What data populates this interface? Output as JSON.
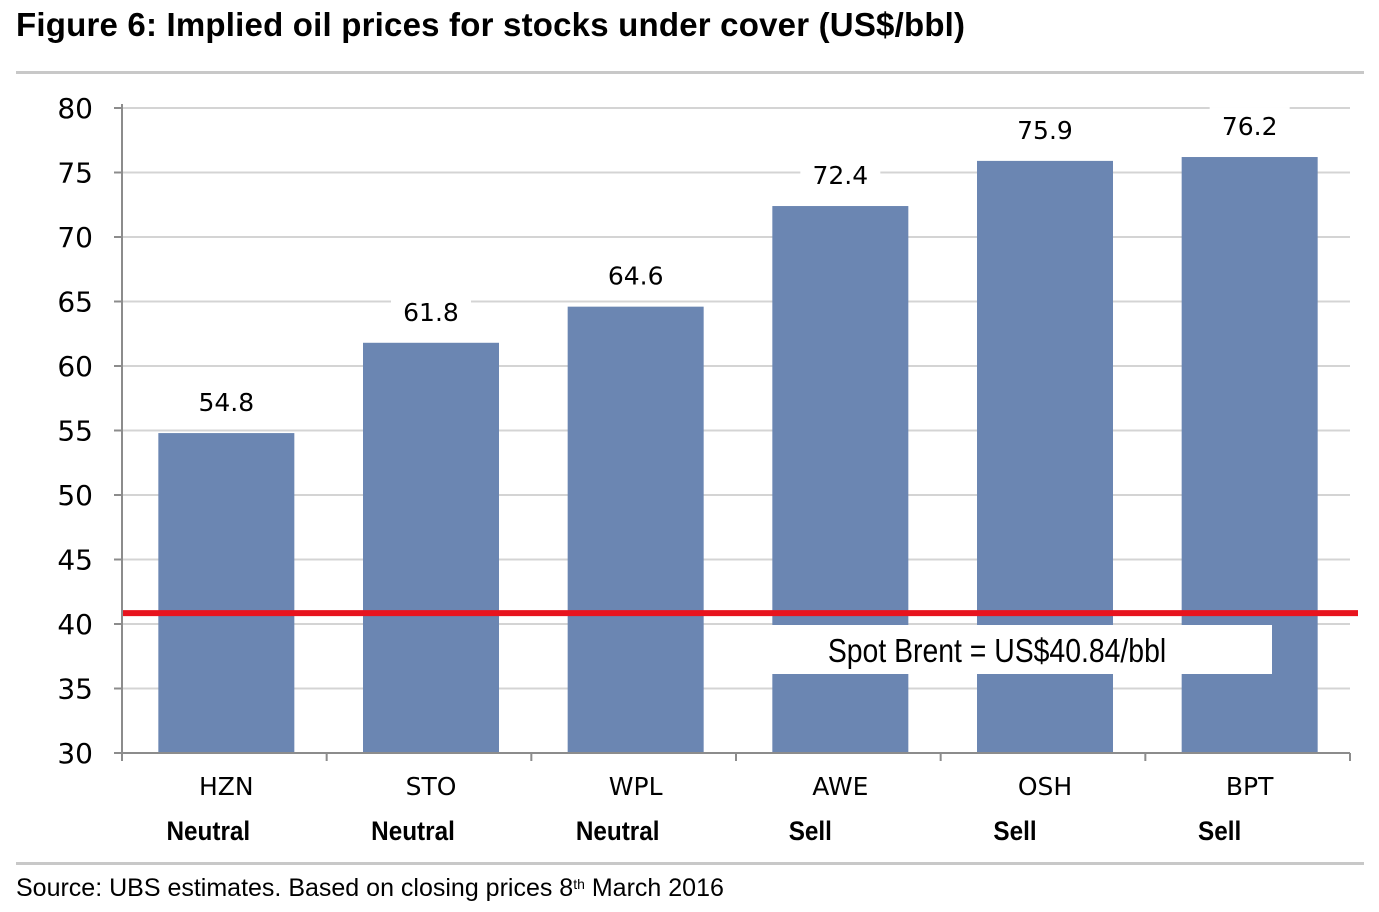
{
  "title": "Figure 6: Implied oil prices for stocks under cover (US$/bbl)",
  "source": {
    "prefix": "Source:  UBS estimates. Based on closing prices 8",
    "sup": "th",
    "suffix": " March 2016"
  },
  "colors": {
    "bar": "#6b86b2",
    "spot_line": "#e8141e",
    "grid": "#d4d4d4",
    "axis": "#8c8c8c"
  },
  "chart_data": {
    "type": "bar",
    "title": "Implied oil prices for stocks under cover (US$/bbl)",
    "categories": [
      "HZN",
      "STO",
      "WPL",
      "AWE",
      "OSH",
      "BPT"
    ],
    "ratings": [
      "Neutral",
      "Neutral",
      "Neutral",
      "Sell",
      "Sell",
      "Sell"
    ],
    "values": [
      54.8,
      61.8,
      64.6,
      72.4,
      75.9,
      76.2
    ],
    "value_labels": [
      "54.8",
      "61.8",
      "64.6",
      "72.4",
      "75.9",
      "76.2"
    ],
    "ylim": [
      30,
      80
    ],
    "yticks": [
      30,
      35,
      40,
      45,
      50,
      55,
      60,
      65,
      70,
      75,
      80
    ],
    "grid": true,
    "reference_line": {
      "value": 40.84,
      "label": "Spot Brent = US$40.84/bbl"
    }
  }
}
